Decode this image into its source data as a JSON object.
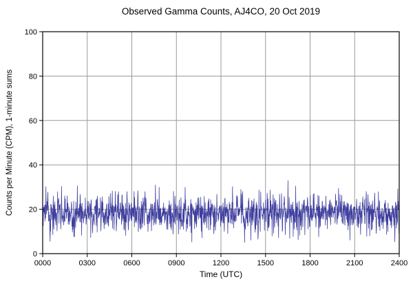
{
  "chart_data": {
    "type": "line",
    "title": "Observed Gamma Counts, AJ4CO, 20 Oct 2019",
    "xlabel": "Time (UTC)",
    "ylabel": "Counts per Minute (CPM), 1-minute sums",
    "xlim_minutes": [
      0,
      1440
    ],
    "ylim": [
      0,
      100
    ],
    "x_ticks": {
      "values_min": [
        0,
        180,
        360,
        540,
        720,
        900,
        1080,
        1260,
        1440
      ],
      "labels": [
        "0000",
        "0300",
        "0600",
        "0900",
        "1200",
        "1500",
        "1800",
        "2100",
        "2400"
      ]
    },
    "y_ticks": {
      "values": [
        0,
        20,
        40,
        60,
        80,
        100
      ],
      "labels": [
        "0",
        "20",
        "40",
        "60",
        "80",
        "100"
      ]
    },
    "grid": true,
    "legend": "none",
    "colors": {
      "line": "#3f3f9f",
      "grid": "#999999",
      "border": "#000000",
      "background": "#ffffff"
    },
    "series": [
      {
        "name": "observed gamma counts",
        "points_per_day": 1440,
        "sample_interval_min": 1,
        "mean_cpm": 18.3,
        "std_cpm": 4.3,
        "min_cpm": 5,
        "max_cpm": 33,
        "seed": 20191020,
        "spikes": [
          {
            "time_min": 60,
            "value": 28
          },
          {
            "time_min": 455,
            "value": 31
          },
          {
            "time_min": 470,
            "value": 30
          },
          {
            "time_min": 575,
            "value": 30
          },
          {
            "time_min": 800,
            "value": 29
          },
          {
            "time_min": 990,
            "value": 33
          },
          {
            "time_min": 1355,
            "value": 28
          }
        ],
        "dips": [
          {
            "time_min": 815,
            "value": 5
          },
          {
            "time_min": 840,
            "value": 6
          },
          {
            "time_min": 1240,
            "value": 6
          }
        ]
      }
    ]
  }
}
